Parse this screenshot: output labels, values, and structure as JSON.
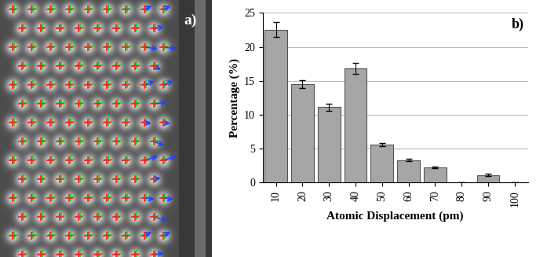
{
  "chart_data": [
    {
      "type": "image",
      "title": "a)"
    },
    {
      "type": "bar",
      "title": "b)",
      "categories": [
        "10",
        "20",
        "30",
        "40",
        "50",
        "60",
        "70",
        "80",
        "90",
        "100"
      ],
      "values": [
        22.5,
        14.5,
        11.1,
        16.8,
        5.6,
        3.3,
        2.2,
        0,
        1.1,
        0
      ],
      "error": [
        1.1,
        0.6,
        0.5,
        0.8,
        0.2,
        0.15,
        0.15,
        0,
        0.15,
        0
      ],
      "x_label": "Atomic Displacement (pm)",
      "y_label": "Percentage (%)",
      "color": "#a6a6a6",
      "ylim": [
        0,
        25
      ],
      "yticks": [
        0,
        5,
        10,
        15,
        20,
        25
      ],
      "grid": true
    }
  ]
}
